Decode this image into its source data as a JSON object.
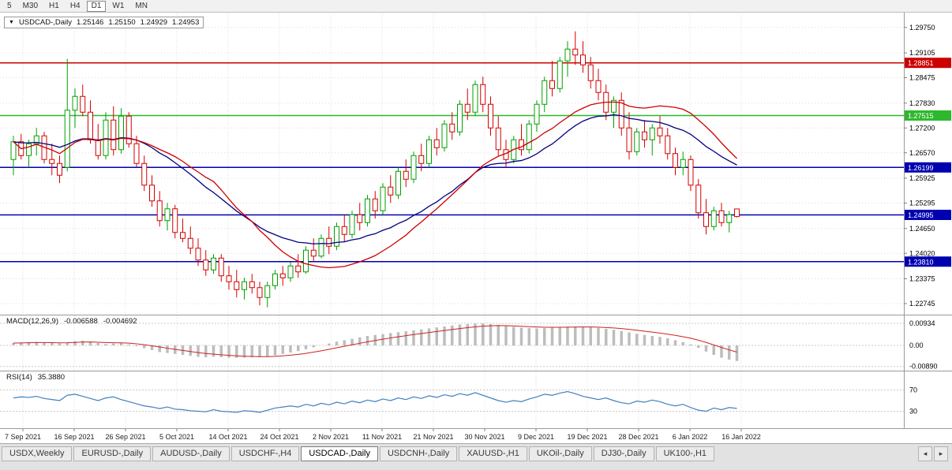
{
  "icons": {
    "symbol_dropdown": "▼",
    "tab_scroll_left": "◂",
    "tab_scroll_right": "▸"
  },
  "colors": {
    "up": "#00a000",
    "down": "#d40000",
    "ma_red": "#cc0000",
    "ma_blue": "#000080",
    "macd_hist": "#bdbdbd",
    "macd_signal": "#cc2222",
    "rsi_line": "#4080c0",
    "grid": "#dcdcdc",
    "separator": "#9a9a9a",
    "hline_red": "#cc0000",
    "hline_green": "#2eb82e",
    "hline_blue": "#0000b0",
    "badge_text": "#ffffff"
  },
  "toolbar": {
    "timeframes": [
      {
        "label": "5",
        "active": false
      },
      {
        "label": "M30",
        "active": false
      },
      {
        "label": "H1",
        "active": false
      },
      {
        "label": "H4",
        "active": false
      },
      {
        "label": "D1",
        "active": true
      },
      {
        "label": "W1",
        "active": false
      },
      {
        "label": "MN",
        "active": false
      }
    ]
  },
  "chart": {
    "title": {
      "symbol": "USDCAD-,Daily",
      "open": "1.25146",
      "high": "1.25150",
      "low": "1.24929",
      "close": "1.24953"
    },
    "price_axis": {
      "ticks": [
        {
          "label": "1.29750",
          "value": 1.2975
        },
        {
          "label": "1.29105",
          "value": 1.29105
        },
        {
          "label": "1.28475",
          "value": 1.28475
        },
        {
          "label": "1.27830",
          "value": 1.2783
        },
        {
          "label": "1.27200",
          "value": 1.272
        },
        {
          "label": "1.26570",
          "value": 1.2657
        },
        {
          "label": "1.25925",
          "value": 1.25925
        },
        {
          "label": "1.25295",
          "value": 1.25295
        },
        {
          "label": "1.24650",
          "value": 1.2465
        },
        {
          "label": "1.24020",
          "value": 1.2402
        },
        {
          "label": "1.23375",
          "value": 1.23375
        },
        {
          "label": "1.22745",
          "value": 1.22745
        }
      ]
    },
    "hlines": [
      {
        "label": "1.28851",
        "value": 1.28851,
        "color": "#cc0000"
      },
      {
        "label": "1.27515",
        "value": 1.27515,
        "color": "#2eb82e"
      },
      {
        "label": "1.26199",
        "value": 1.26199,
        "color": "#0000b0"
      },
      {
        "label": "1.24995",
        "value": 1.24995,
        "color": "#0000b0"
      },
      {
        "label": "1.23810",
        "value": 1.2381,
        "color": "#0000b0"
      }
    ],
    "date_axis": [
      "7 Sep 2021",
      "16 Sep 2021",
      "26 Sep 2021",
      "5 Oct 2021",
      "14 Oct 2021",
      "24 Oct 2021",
      "2 Nov 2021",
      "11 Nov 2021",
      "21 Nov 2021",
      "30 Nov 2021",
      "9 Dec 2021",
      "19 Dec 2021",
      "28 Dec 2021",
      "6 Jan 2022",
      "16 Jan 2022"
    ],
    "candles": [
      [
        1.264,
        1.27,
        1.26,
        1.2685
      ],
      [
        1.2685,
        1.2705,
        1.264,
        1.265
      ],
      [
        1.265,
        1.269,
        1.262,
        1.268
      ],
      [
        1.268,
        1.272,
        1.265,
        1.27
      ],
      [
        1.27,
        1.271,
        1.263,
        1.264
      ],
      [
        1.264,
        1.268,
        1.26,
        1.263
      ],
      [
        1.263,
        1.265,
        1.258,
        1.26
      ],
      [
        1.262,
        1.2895,
        1.261,
        1.2765
      ],
      [
        1.2765,
        1.282,
        1.272,
        1.28
      ],
      [
        1.28,
        1.283,
        1.275,
        1.276
      ],
      [
        1.276,
        1.279,
        1.268,
        1.269
      ],
      [
        1.269,
        1.273,
        1.264,
        1.265
      ],
      [
        1.265,
        1.276,
        1.264,
        1.274
      ],
      [
        1.274,
        1.2775,
        1.265,
        1.2665
      ],
      [
        1.2665,
        1.277,
        1.2655,
        1.275
      ],
      [
        1.275,
        1.276,
        1.267,
        1.268
      ],
      [
        1.268,
        1.27,
        1.262,
        1.263
      ],
      [
        1.263,
        1.265,
        1.256,
        1.2575
      ],
      [
        1.2575,
        1.26,
        1.252,
        1.2535
      ],
      [
        1.2535,
        1.256,
        1.247,
        1.2485
      ],
      [
        1.2485,
        1.253,
        1.246,
        1.2515
      ],
      [
        1.2515,
        1.2525,
        1.244,
        1.2455
      ],
      [
        1.2455,
        1.249,
        1.243,
        1.244
      ],
      [
        1.244,
        1.247,
        1.24,
        1.2415
      ],
      [
        1.2415,
        1.244,
        1.237,
        1.2385
      ],
      [
        1.2385,
        1.241,
        1.2345,
        1.236
      ],
      [
        1.236,
        1.24,
        1.235,
        1.239
      ],
      [
        1.239,
        1.24,
        1.233,
        1.2345
      ],
      [
        1.2345,
        1.237,
        1.231,
        1.233
      ],
      [
        1.233,
        1.236,
        1.229,
        1.231
      ],
      [
        1.231,
        1.234,
        1.2285,
        1.233
      ],
      [
        1.233,
        1.235,
        1.23,
        1.2315
      ],
      [
        1.2315,
        1.233,
        1.227,
        1.229
      ],
      [
        1.229,
        1.233,
        1.2265,
        1.232
      ],
      [
        1.232,
        1.236,
        1.231,
        1.235
      ],
      [
        1.235,
        1.237,
        1.232,
        1.234
      ],
      [
        1.234,
        1.238,
        1.233,
        1.237
      ],
      [
        1.237,
        1.24,
        1.234,
        1.2355
      ],
      [
        1.2355,
        1.242,
        1.235,
        1.241
      ],
      [
        1.241,
        1.244,
        1.238,
        1.2395
      ],
      [
        1.2395,
        1.245,
        1.239,
        1.244
      ],
      [
        1.244,
        1.247,
        1.24,
        1.242
      ],
      [
        1.242,
        1.248,
        1.241,
        1.247
      ],
      [
        1.247,
        1.25,
        1.243,
        1.245
      ],
      [
        1.245,
        1.251,
        1.244,
        1.25
      ],
      [
        1.25,
        1.253,
        1.246,
        1.248
      ],
      [
        1.248,
        1.255,
        1.247,
        1.254
      ],
      [
        1.254,
        1.256,
        1.249,
        1.251
      ],
      [
        1.251,
        1.258,
        1.25,
        1.257
      ],
      [
        1.257,
        1.26,
        1.253,
        1.255
      ],
      [
        1.255,
        1.262,
        1.254,
        1.261
      ],
      [
        1.261,
        1.264,
        1.257,
        1.259
      ],
      [
        1.259,
        1.266,
        1.258,
        1.265
      ],
      [
        1.265,
        1.268,
        1.261,
        1.263
      ],
      [
        1.263,
        1.27,
        1.262,
        1.269
      ],
      [
        1.269,
        1.272,
        1.265,
        1.267
      ],
      [
        1.267,
        1.274,
        1.266,
        1.273
      ],
      [
        1.273,
        1.276,
        1.269,
        1.271
      ],
      [
        1.271,
        1.279,
        1.27,
        1.278
      ],
      [
        1.278,
        1.282,
        1.274,
        1.276
      ],
      [
        1.276,
        1.284,
        1.275,
        1.283
      ],
      [
        1.283,
        1.285,
        1.276,
        1.278
      ],
      [
        1.278,
        1.28,
        1.27,
        1.272
      ],
      [
        1.272,
        1.275,
        1.265,
        1.2665
      ],
      [
        1.2665,
        1.269,
        1.262,
        1.264
      ],
      [
        1.264,
        1.27,
        1.263,
        1.269
      ],
      [
        1.269,
        1.273,
        1.265,
        1.2665
      ],
      [
        1.2665,
        1.274,
        1.2655,
        1.273
      ],
      [
        1.273,
        1.279,
        1.271,
        1.278
      ],
      [
        1.278,
        1.285,
        1.276,
        1.284
      ],
      [
        1.284,
        1.289,
        1.28,
        1.282
      ],
      [
        1.282,
        1.29,
        1.281,
        1.289
      ],
      [
        1.289,
        1.294,
        1.285,
        1.292
      ],
      [
        1.292,
        1.2965,
        1.288,
        1.2905
      ],
      [
        1.2905,
        1.294,
        1.286,
        1.288
      ],
      [
        1.288,
        1.29,
        1.282,
        1.284
      ],
      [
        1.284,
        1.287,
        1.279,
        1.281
      ],
      [
        1.281,
        1.283,
        1.274,
        1.276
      ],
      [
        1.276,
        1.28,
        1.272,
        1.279
      ],
      [
        1.279,
        1.281,
        1.27,
        1.272
      ],
      [
        1.272,
        1.276,
        1.264,
        1.266
      ],
      [
        1.266,
        1.272,
        1.265,
        1.271
      ],
      [
        1.271,
        1.274,
        1.267,
        1.269
      ],
      [
        1.269,
        1.273,
        1.265,
        1.272
      ],
      [
        1.272,
        1.275,
        1.268,
        1.27
      ],
      [
        1.27,
        1.272,
        1.264,
        1.2655
      ],
      [
        1.2655,
        1.267,
        1.26,
        1.262
      ],
      [
        1.262,
        1.266,
        1.26,
        1.264
      ],
      [
        1.264,
        1.265,
        1.256,
        1.2575
      ],
      [
        1.2575,
        1.259,
        1.249,
        1.2505
      ],
      [
        1.2505,
        1.254,
        1.245,
        1.247
      ],
      [
        1.247,
        1.252,
        1.246,
        1.251
      ],
      [
        1.251,
        1.253,
        1.247,
        1.248
      ],
      [
        1.248,
        1.251,
        1.2455,
        1.25
      ],
      [
        1.25146,
        1.2515,
        1.24929,
        1.24953
      ]
    ]
  },
  "macd": {
    "name": "MACD(12,26,9)",
    "value_macd": "-0.006588",
    "value_signal": "-0.004692",
    "axis": [
      {
        "label": "0.00934",
        "value": 0.00934
      },
      {
        "label": "0.00",
        "value": 0
      },
      {
        "label": "-0.00890",
        "value": -0.0089
      }
    ],
    "values": [
      0.001,
      0.0012,
      0.0014,
      0.0015,
      0.0013,
      0.001,
      0.0008,
      0.0012,
      0.0018,
      0.002,
      0.0016,
      0.001,
      0.0006,
      0.0008,
      0.001,
      0.0004,
      -0.0004,
      -0.0012,
      -0.002,
      -0.0028,
      -0.0032,
      -0.0036,
      -0.004,
      -0.0044,
      -0.0048,
      -0.005,
      -0.0048,
      -0.005,
      -0.0052,
      -0.0053,
      -0.0052,
      -0.005,
      -0.005,
      -0.0048,
      -0.0042,
      -0.0036,
      -0.003,
      -0.0024,
      -0.0016,
      -0.0008,
      0.0,
      0.0008,
      0.0016,
      0.0022,
      0.0028,
      0.0034,
      0.004,
      0.0044,
      0.0048,
      0.0052,
      0.0056,
      0.006,
      0.0064,
      0.0068,
      0.0072,
      0.0076,
      0.008,
      0.0084,
      0.0088,
      0.009,
      0.0092,
      0.0093,
      0.009,
      0.0086,
      0.0082,
      0.0078,
      0.0075,
      0.0073,
      0.0072,
      0.0073,
      0.0075,
      0.0077,
      0.0079,
      0.008,
      0.0079,
      0.0077,
      0.0074,
      0.007,
      0.0066,
      0.0061,
      0.0055,
      0.0049,
      0.0044,
      0.004,
      0.0036,
      0.003,
      0.0022,
      0.0014,
      0.0004,
      -0.001,
      -0.0026,
      -0.004,
      -0.0052,
      -0.006,
      -0.0066
    ]
  },
  "rsi": {
    "name": "RSI(14)",
    "value": "35.3880",
    "axis": [
      {
        "label": "70",
        "value": 70
      },
      {
        "label": "30",
        "value": 30
      }
    ],
    "levels": [
      70,
      30
    ],
    "values": [
      55,
      57,
      56,
      58,
      54,
      52,
      50,
      60,
      62,
      58,
      54,
      50,
      55,
      57,
      52,
      48,
      44,
      40,
      38,
      35,
      38,
      34,
      33,
      31,
      30,
      29,
      33,
      30,
      29,
      28,
      31,
      30,
      28,
      32,
      36,
      38,
      40,
      38,
      43,
      40,
      45,
      42,
      47,
      44,
      49,
      46,
      51,
      48,
      53,
      50,
      55,
      52,
      57,
      54,
      59,
      56,
      61,
      58,
      63,
      60,
      65,
      60,
      55,
      50,
      47,
      50,
      48,
      53,
      57,
      62,
      60,
      64,
      67,
      63,
      58,
      55,
      52,
      55,
      50,
      46,
      44,
      49,
      47,
      51,
      48,
      43,
      40,
      43,
      37,
      32,
      30,
      36,
      33,
      37,
      35.39
    ]
  },
  "tabs": {
    "items": [
      {
        "label": "USDX,Weekly",
        "active": false
      },
      {
        "label": "EURUSD-,Daily",
        "active": false
      },
      {
        "label": "AUDUSD-,Daily",
        "active": false
      },
      {
        "label": "USDCHF-,H4",
        "active": false
      },
      {
        "label": "USDCAD-,Daily",
        "active": true
      },
      {
        "label": "USDCNH-,Daily",
        "active": false
      },
      {
        "label": "XAUUSD-,H1",
        "active": false
      },
      {
        "label": "UKOil-,Daily",
        "active": false
      },
      {
        "label": "DJ30-,Daily",
        "active": false
      },
      {
        "label": "UK100-,H1",
        "active": false
      }
    ]
  }
}
